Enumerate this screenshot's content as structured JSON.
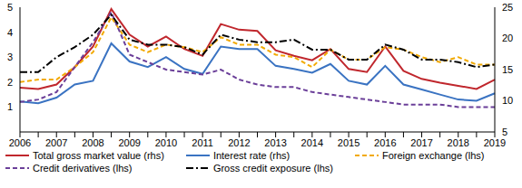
{
  "chart_data": {
    "type": "line",
    "categories": [
      "2006",
      null,
      "2007",
      null,
      "2008",
      null,
      "2009",
      null,
      "2010",
      null,
      "2011",
      null,
      "2012",
      null,
      "2013",
      null,
      "2014",
      null,
      "2015",
      null,
      "2016",
      null,
      "2017",
      null,
      "2018",
      null,
      "2019"
    ],
    "ylim": [
      0,
      5
    ],
    "yticks": [
      1,
      2,
      3,
      4,
      5
    ],
    "y2lim": [
      5,
      25
    ],
    "y2ticks": [
      5,
      10,
      15,
      20,
      25
    ],
    "grid": false,
    "legend": "bottom",
    "series": [
      {
        "name": "Total gross market value (rhs)",
        "color": "#c0272d",
        "line_style": "solid",
        "axis": "y2",
        "values": [
          12.1,
          11.9,
          12.6,
          15.4,
          18.7,
          24.7,
          20.6,
          18.7,
          20.3,
          18.3,
          17.2,
          22.3,
          21.4,
          21.2,
          18.1,
          17.2,
          16.5,
          18.3,
          15.1,
          14.6,
          18.7,
          14.8,
          13.5,
          12.9,
          12.4,
          11.9,
          13.4
        ]
      },
      {
        "name": "Interest rate (rhs)",
        "color": "#3a73c2",
        "line_style": "solid",
        "axis": "y2",
        "values": [
          9.9,
          9.6,
          10.5,
          12.6,
          13.2,
          19.2,
          16.3,
          15.4,
          17.0,
          15.1,
          14.3,
          18.7,
          18.3,
          18.3,
          15.6,
          15.1,
          14.5,
          15.9,
          13.2,
          12.6,
          15.6,
          12.6,
          11.8,
          11.0,
          10.2,
          10.0,
          11.2
        ]
      },
      {
        "name": "Foreign exchange (lhs)",
        "color": "#f2a900",
        "line_style": "dashed",
        "values": [
          2.0,
          2.1,
          2.1,
          2.6,
          3.2,
          4.6,
          3.5,
          3.2,
          3.5,
          3.4,
          3.2,
          3.8,
          3.5,
          3.5,
          3.1,
          3.0,
          2.6,
          3.3,
          2.9,
          2.9,
          3.4,
          3.3,
          3.0,
          2.8,
          3.0,
          2.7,
          2.7
        ]
      },
      {
        "name": "Credit derivatives (lhs)",
        "color": "#6b3f99",
        "line_style": "dashed",
        "values": [
          1.2,
          1.3,
          1.6,
          2.6,
          3.6,
          4.8,
          3.1,
          2.8,
          2.5,
          2.4,
          2.3,
          2.5,
          2.1,
          1.9,
          1.8,
          1.8,
          1.6,
          1.5,
          1.4,
          1.3,
          1.2,
          1.1,
          1.1,
          1.1,
          1.0,
          1.0,
          1.0
        ]
      },
      {
        "name": "Gross credit exposure (lhs)",
        "color": "#000000",
        "line_style": "dashdot",
        "values": [
          2.4,
          2.4,
          3.0,
          3.4,
          3.9,
          4.7,
          3.7,
          3.5,
          3.5,
          3.4,
          3.1,
          3.9,
          3.7,
          3.6,
          3.6,
          3.7,
          3.3,
          3.3,
          2.9,
          2.9,
          3.5,
          3.3,
          2.9,
          2.9,
          2.8,
          2.6,
          2.7
        ]
      }
    ]
  }
}
